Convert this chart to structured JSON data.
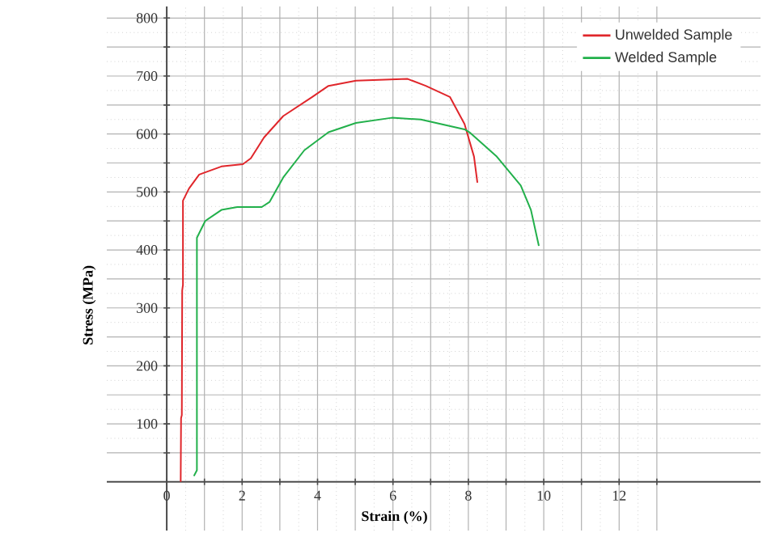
{
  "chart_data": {
    "type": "line",
    "xlabel": "Strain (%)",
    "ylabel": "Stress (MPa)",
    "xlim": [
      -1.59,
      15.75
    ],
    "ylim": [
      -84,
      820
    ],
    "xticks": [
      {
        "value": 0,
        "label": "0"
      },
      {
        "value": 1,
        "label": null
      },
      2,
      {
        "value": 3,
        "label": null
      },
      4,
      {
        "value": 5,
        "label": null
      },
      6,
      {
        "value": 7,
        "label": null
      },
      8,
      {
        "value": 9,
        "label": null
      },
      10,
      {
        "value": 11,
        "label": null
      },
      12,
      {
        "value": 13,
        "label": null
      }
    ],
    "yticks": [
      {
        "value": 50,
        "label": null
      },
      100,
      {
        "value": 150,
        "label": null
      },
      200,
      {
        "value": 250,
        "label": null
      },
      300,
      {
        "value": 350,
        "label": null
      },
      400,
      {
        "value": 450,
        "label": null
      },
      500,
      {
        "value": 550,
        "label": null
      },
      600,
      {
        "value": 650,
        "label": null
      },
      700,
      {
        "value": 750,
        "label": null
      },
      800
    ],
    "grid": true,
    "legend": "top right",
    "line_style": "solid",
    "marker": "none",
    "series": [
      {
        "name": "Unwelded Sample",
        "color": "#e0262b",
        "x": [
          0.37,
          0.38,
          0.4,
          0.41,
          0.43,
          0.43,
          0.59,
          0.86,
          1.45,
          2.02,
          2.23,
          2.58,
          3.09,
          3.86,
          4.29,
          5.02,
          6.39,
          6.87,
          7.51,
          7.9,
          7.94,
          8.15,
          8.24
        ],
        "values": [
          0,
          110,
          115,
          330,
          340,
          485,
          506,
          530,
          544,
          548,
          558,
          594,
          631,
          664,
          683,
          692,
          695,
          683,
          664,
          617,
          608,
          561,
          516
        ]
      },
      {
        "name": "Welded Sample",
        "color": "#22b04b",
        "x": [
          0.72,
          0.8,
          0.8,
          1.02,
          1.45,
          1.87,
          2.52,
          2.73,
          3.09,
          3.65,
          4.29,
          5.02,
          5.97,
          6.74,
          7.9,
          8.03,
          8.74,
          9.39,
          9.66,
          9.87
        ],
        "values": [
          10,
          20,
          421,
          450,
          469,
          474,
          474,
          483,
          525,
          572,
          603,
          619,
          628,
          625,
          608,
          603,
          562,
          511,
          469,
          407
        ]
      }
    ]
  }
}
